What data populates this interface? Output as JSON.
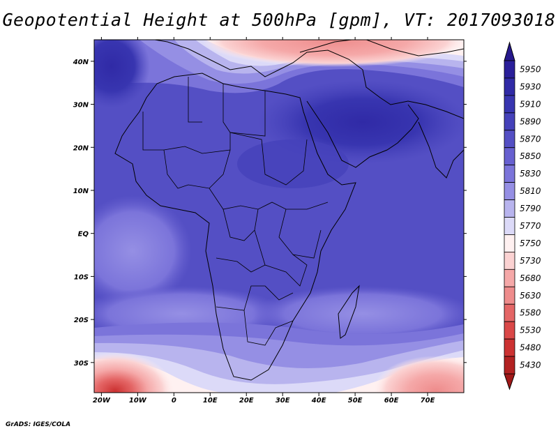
{
  "title": "Geopotential Height at 500hPa [gpm], VT: 2017093018",
  "credit": "GrADS: IGES/COLA",
  "map": {
    "lon_range": [
      -22,
      80
    ],
    "lat_range": [
      -37,
      45
    ],
    "lon_ticks": [
      {
        "value": -20,
        "label": "20W"
      },
      {
        "value": -10,
        "label": "10W"
      },
      {
        "value": 0,
        "label": "0"
      },
      {
        "value": 10,
        "label": "10E"
      },
      {
        "value": 20,
        "label": "20E"
      },
      {
        "value": 30,
        "label": "30E"
      },
      {
        "value": 40,
        "label": "40E"
      },
      {
        "value": 50,
        "label": "50E"
      },
      {
        "value": 60,
        "label": "60E"
      },
      {
        "value": 70,
        "label": "70E"
      }
    ],
    "lat_ticks": [
      {
        "value": 40,
        "label": "40N"
      },
      {
        "value": 30,
        "label": "30N"
      },
      {
        "value": 20,
        "label": "20N"
      },
      {
        "value": 10,
        "label": "10N"
      },
      {
        "value": 0,
        "label": "EQ"
      },
      {
        "value": -10,
        "label": "10S"
      },
      {
        "value": -20,
        "label": "20S"
      },
      {
        "value": -30,
        "label": "30S"
      }
    ]
  },
  "colorbar": {
    "levels": [
      "5950",
      "5930",
      "5910",
      "5890",
      "5870",
      "5850",
      "5830",
      "5810",
      "5790",
      "5770",
      "5750",
      "5730",
      "5680",
      "5630",
      "5580",
      "5530",
      "5480",
      "5430"
    ],
    "colors": [
      "#2a1f9a",
      "#302aa6",
      "#3835b0",
      "#4541ba",
      "#544fc4",
      "#6760d0",
      "#7b74da",
      "#958fe4",
      "#b8b4ee",
      "#dcdaf8",
      "#fff1f1",
      "#fbd2d2",
      "#f5a8a8",
      "#ee8c8c",
      "#e46666",
      "#da4848",
      "#cc3232",
      "#b22222"
    ],
    "top_arrow_color": "#26188c",
    "bottom_arrow_color": "#a01818"
  }
}
